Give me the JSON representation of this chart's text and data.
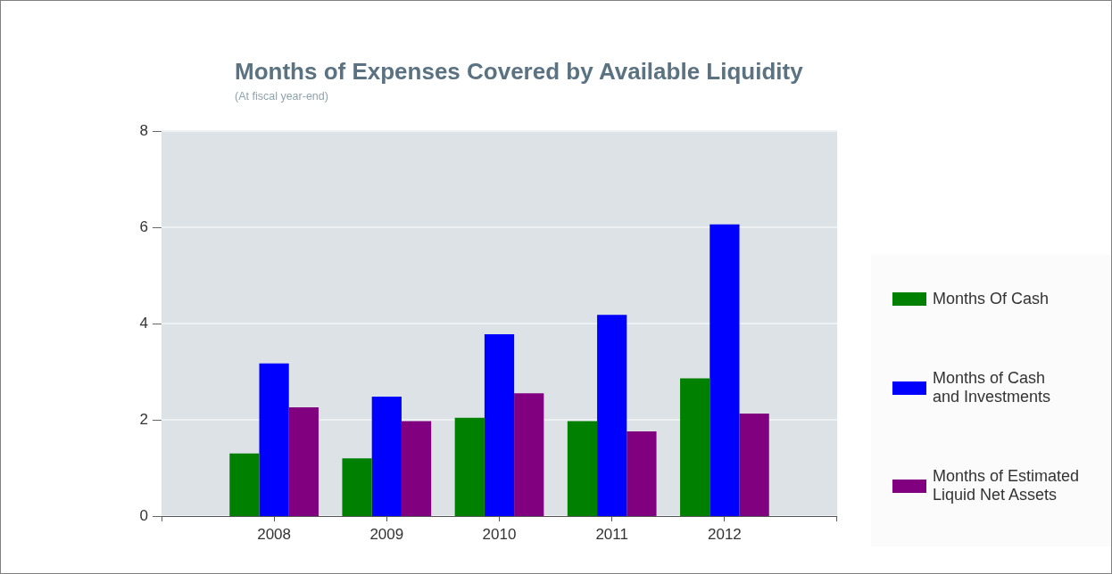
{
  "chart_data": {
    "type": "bar",
    "title": "Months of Expenses Covered by Available Liquidity",
    "subtitle": "(At fiscal year-end)",
    "categories": [
      "2008",
      "2009",
      "2010",
      "2011",
      "2012"
    ],
    "series": [
      {
        "name": "Months Of Cash",
        "color": "#008000",
        "values": [
          1.3,
          1.2,
          2.04,
          1.97,
          2.86
        ]
      },
      {
        "name": "Months of Cash and Investments",
        "color": "#0000ff",
        "values": [
          3.17,
          2.48,
          3.78,
          4.18,
          6.06
        ]
      },
      {
        "name": "Months of Estimated Liquid Net Assets",
        "color": "#800080",
        "values": [
          2.26,
          1.97,
          2.55,
          1.76,
          2.13
        ]
      }
    ],
    "ylim": [
      0,
      8
    ],
    "yticks": [
      0,
      2,
      4,
      6,
      8
    ],
    "grid": "y",
    "legend": "right"
  }
}
